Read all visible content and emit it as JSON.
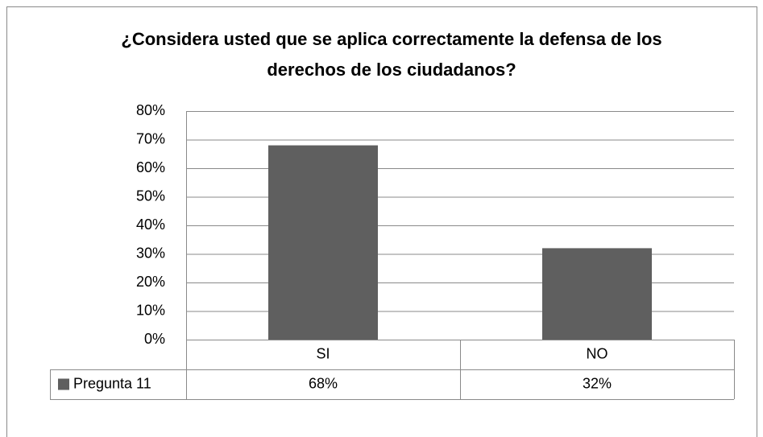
{
  "chart_data": {
    "type": "bar",
    "title": "¿Considera usted que se aplica correctamente la defensa de los derechos de los ciudadanos?",
    "categories": [
      "SI",
      "NO"
    ],
    "series": [
      {
        "name": "Pregunta 11",
        "color": "#5f5f5f",
        "values": [
          68,
          32
        ],
        "value_labels": [
          "68%",
          "32%"
        ]
      }
    ],
    "ylim": [
      0,
      80
    ],
    "yticks": [
      {
        "value": 0,
        "label": "0%"
      },
      {
        "value": 10,
        "label": "10%"
      },
      {
        "value": 20,
        "label": "20%"
      },
      {
        "value": 30,
        "label": "30%"
      },
      {
        "value": 40,
        "label": "40%"
      },
      {
        "value": 50,
        "label": "50%"
      },
      {
        "value": 60,
        "label": "60%"
      },
      {
        "value": 70,
        "label": "70%"
      },
      {
        "value": 80,
        "label": "80%"
      }
    ],
    "grid": true,
    "data_table": true
  }
}
